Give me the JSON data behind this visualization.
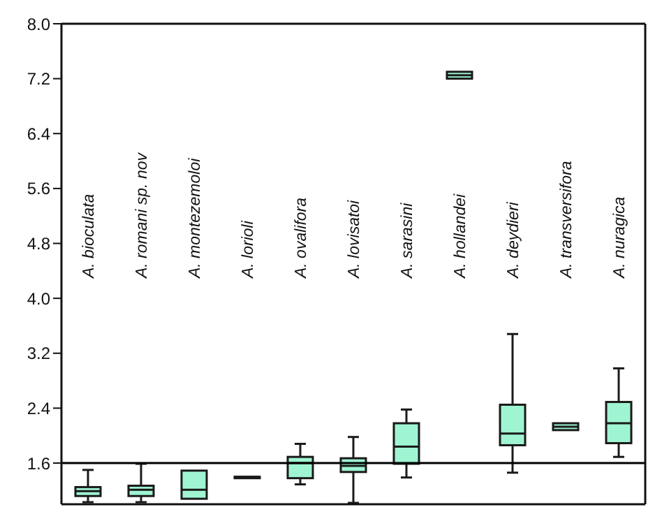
{
  "chart_data": {
    "type": "box",
    "categories": [
      "A. bioculata",
      "A. romani sp. nov",
      "A. montezemoloi",
      "A. lorioli",
      "A. ovalifora",
      "A. lovisatoi",
      "A. sarasini",
      "A. hollandei",
      "A. deydieri",
      "A. transversifora",
      "A. nuragica"
    ],
    "boxes": [
      {
        "low": 1.03,
        "q1": 1.12,
        "median": 1.19,
        "q3": 1.25,
        "high": 1.5
      },
      {
        "low": 1.03,
        "q1": 1.12,
        "median": 1.21,
        "q3": 1.27,
        "high": 1.59
      },
      {
        "low": 1.08,
        "q1": 1.08,
        "median": 1.21,
        "q3": 1.49,
        "high": 1.49
      },
      {
        "low": 1.4,
        "q1": 1.4,
        "median": 1.4,
        "q3": 1.4,
        "high": 1.4
      },
      {
        "low": 1.29,
        "q1": 1.38,
        "median": 1.6,
        "q3": 1.69,
        "high": 1.88
      },
      {
        "low": 1.02,
        "q1": 1.47,
        "median": 1.56,
        "q3": 1.67,
        "high": 1.98
      },
      {
        "low": 1.39,
        "q1": 1.59,
        "median": 1.84,
        "q3": 2.18,
        "high": 2.38
      },
      {
        "low": 7.2,
        "q1": 7.2,
        "median": 7.25,
        "q3": 7.3,
        "high": 7.3
      },
      {
        "low": 1.46,
        "q1": 1.86,
        "median": 2.03,
        "q3": 2.45,
        "high": 3.48
      },
      {
        "low": 2.08,
        "q1": 2.08,
        "median": 2.13,
        "q3": 2.18,
        "high": 2.18
      },
      {
        "low": 1.69,
        "q1": 1.89,
        "median": 2.18,
        "q3": 2.49,
        "high": 2.98
      }
    ],
    "color": "#9ff5d2",
    "ylim": [
      1.0,
      8.0
    ],
    "yticks": [
      {
        "value": 1.6,
        "label": "1.6"
      },
      {
        "value": 2.4,
        "label": "2.4"
      },
      {
        "value": 3.2,
        "label": "3.2"
      },
      {
        "value": 4,
        "label": "4.0"
      },
      {
        "value": 4.8,
        "label": "4.8"
      },
      {
        "value": 5.6,
        "label": "5.6"
      },
      {
        "value": 6.4,
        "label": "6.4"
      },
      {
        "value": 7.2,
        "label": "7.2"
      },
      {
        "value": 8,
        "label": "8.0"
      }
    ],
    "ref_lines": [
      {
        "axis": "y",
        "value": 1.6,
        "color": "#000000"
      }
    ],
    "grid": false,
    "legend": false
  }
}
